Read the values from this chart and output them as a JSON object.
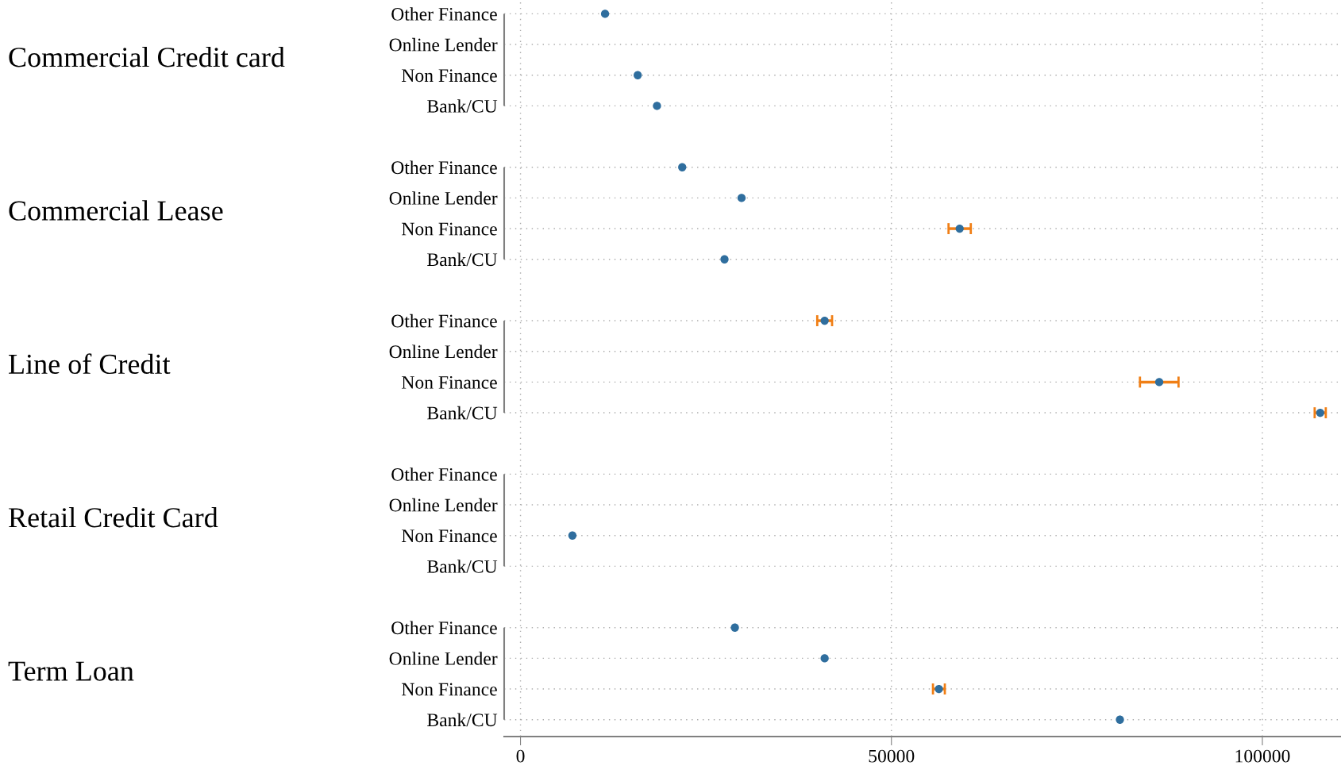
{
  "chart_data": {
    "type": "scatter",
    "orientation": "horizontal",
    "categories": [
      "Other Finance",
      "Online Lender",
      "Non Finance",
      "Bank/CU",
      null,
      "Other Finance",
      "Online Lender",
      "Non Finance",
      "Bank/CU",
      null,
      "Other Finance",
      "Online Lender",
      "Non Finance",
      "Bank/CU",
      null,
      "Other Finance",
      "Online Lender",
      "Non Finance",
      "Bank/CU",
      null,
      "Other Finance",
      "Online Lender",
      "Non Finance",
      "Bank/CU"
    ],
    "annotations": [
      "Commercial Credit card",
      "Commercial Lease",
      "Line of Credit",
      "Retail Credit Card",
      "Term Loan"
    ],
    "series": [
      {
        "color": "#2f6e9e",
        "values": [
          11400,
          null,
          15800,
          18400,
          null,
          21800,
          29800,
          59200,
          27500,
          null,
          41000,
          null,
          86100,
          107800,
          null,
          null,
          null,
          7000,
          null,
          null,
          28900,
          41000,
          56400,
          80800
        ],
        "errors": [
          null,
          null,
          null,
          null,
          null,
          null,
          null,
          1500,
          null,
          null,
          1000,
          null,
          2600,
          750,
          null,
          null,
          null,
          null,
          null,
          null,
          null,
          null,
          800,
          null
        ]
      }
    ],
    "xlim": [
      -2200,
      110600
    ],
    "xticks": [
      0,
      50000,
      100000
    ],
    "grid": true,
    "marker": "circle"
  }
}
